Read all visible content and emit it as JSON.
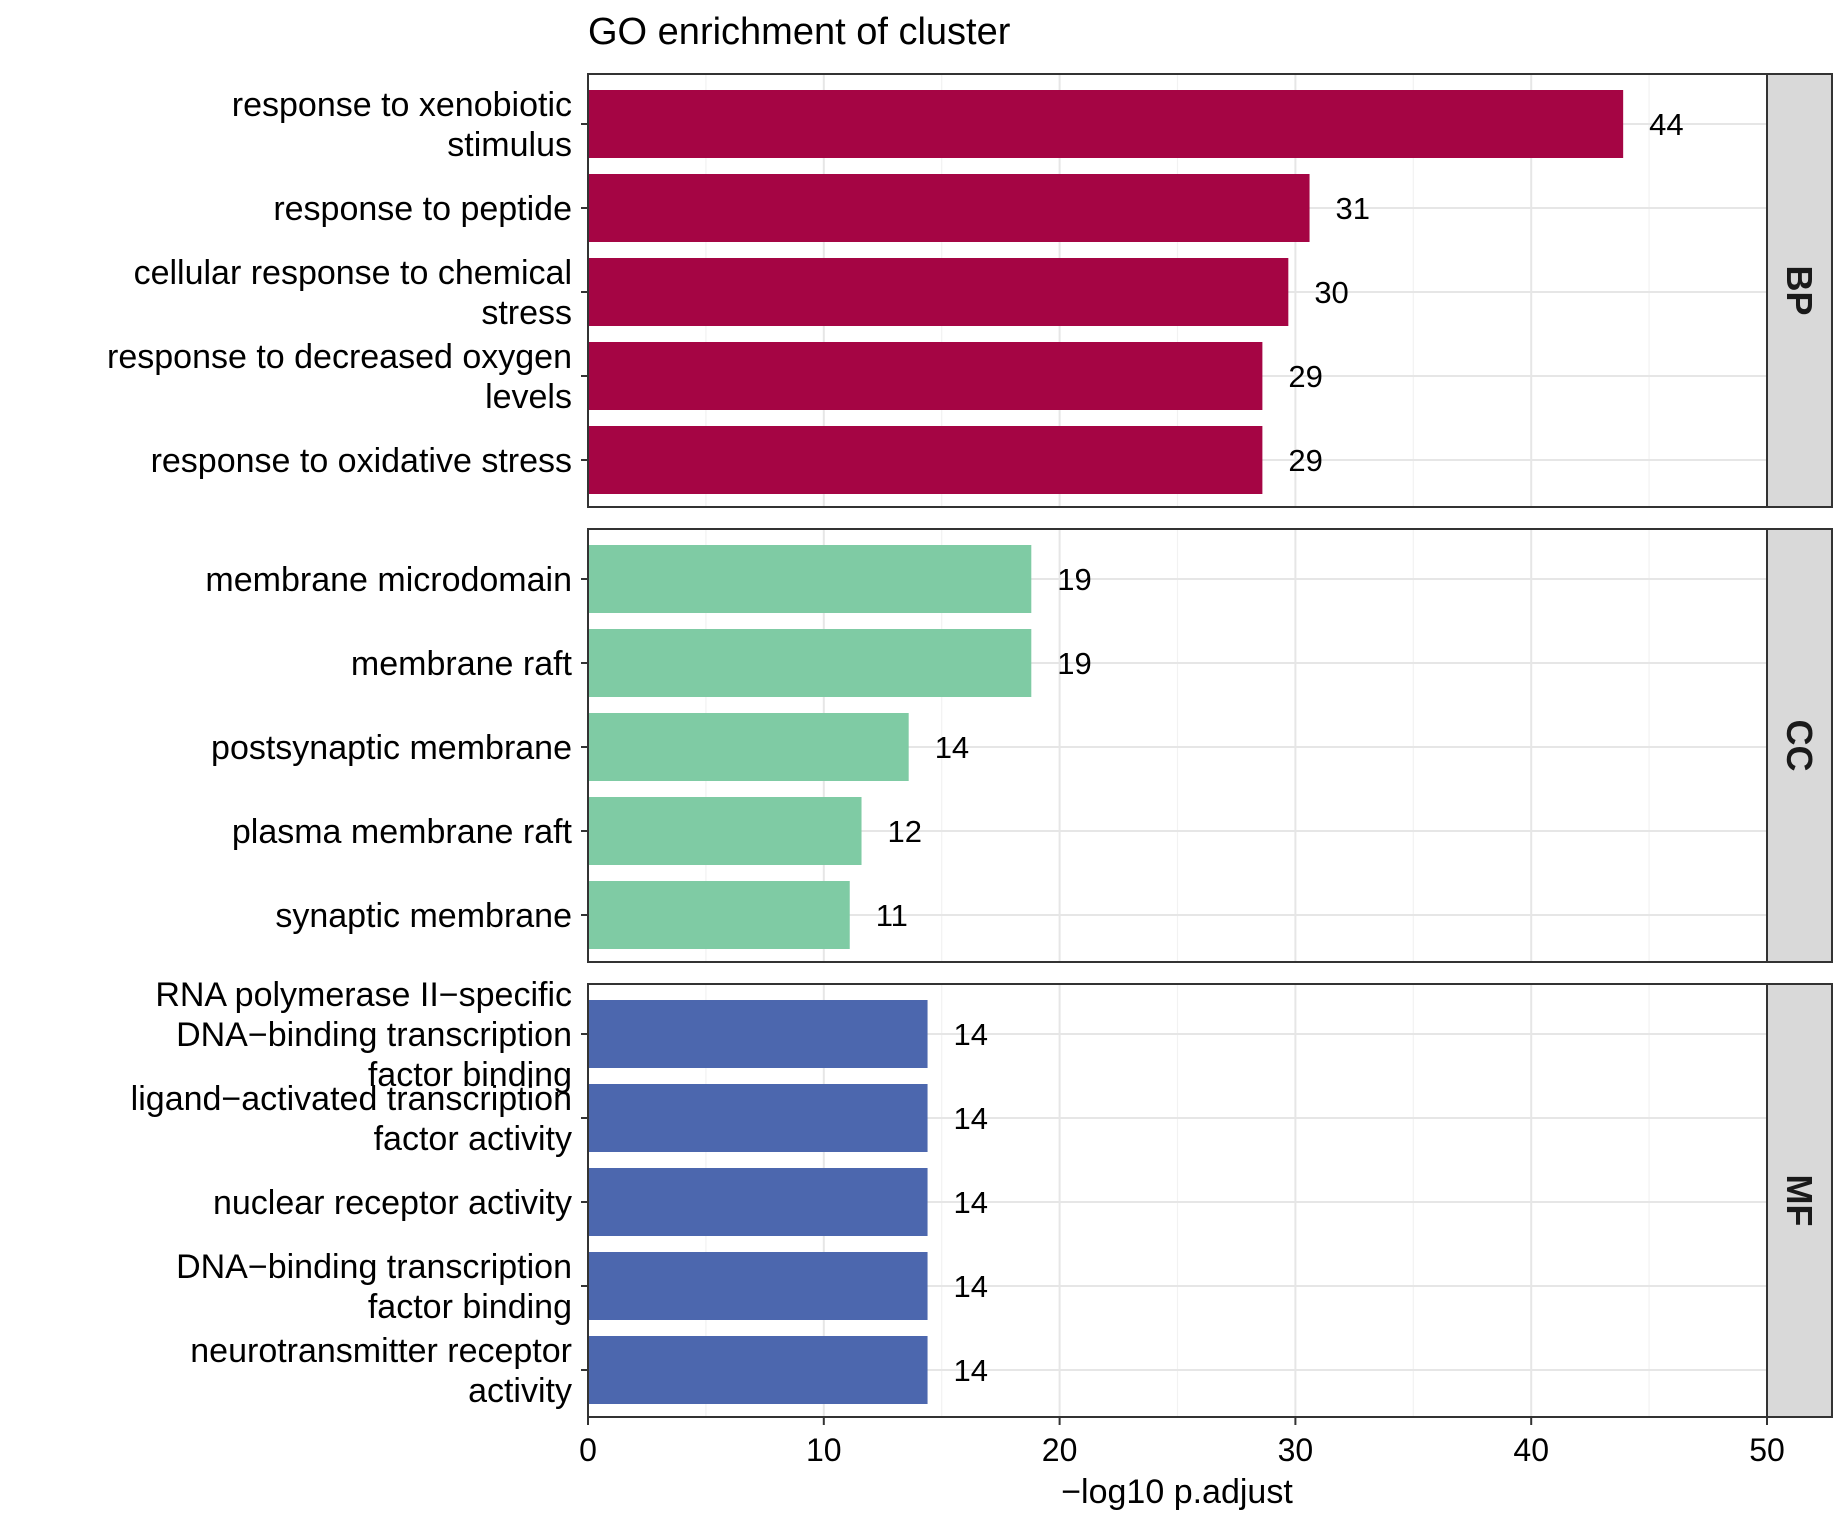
{
  "chart_data": {
    "type": "bar",
    "orientation": "horizontal",
    "title": "GO enrichment of cluster",
    "xlabel": "−log10 p.adjust",
    "xlim": [
      0,
      50
    ],
    "xticks": [
      "0",
      "10",
      "20",
      "30",
      "40",
      "50"
    ],
    "xtick_values": [
      0,
      10,
      20,
      30,
      40,
      50
    ],
    "grid": true,
    "legend": "none",
    "panels": [
      {
        "name": "BP",
        "color": "#a50544",
        "categories": [
          "response to xenobiotic stimulus",
          "response to peptide",
          "cellular response to chemical stress",
          "response to decreased oxygen levels",
          "response to oxidative stress"
        ],
        "label_lines": [
          [
            "response to xenobiotic",
            "stimulus"
          ],
          [
            "response to peptide"
          ],
          [
            "cellular response to chemical",
            "stress"
          ],
          [
            "response to decreased oxygen",
            "levels"
          ],
          [
            "response to oxidative stress"
          ]
        ],
        "values": [
          43.9,
          30.6,
          29.7,
          28.6,
          28.6
        ],
        "labels": [
          "44",
          "31",
          "30",
          "29",
          "29"
        ]
      },
      {
        "name": "CC",
        "color": "#7fcba4",
        "categories": [
          "membrane microdomain",
          "membrane raft",
          "postsynaptic membrane",
          "plasma membrane raft",
          "synaptic membrane"
        ],
        "label_lines": [
          [
            "membrane microdomain"
          ],
          [
            "membrane raft"
          ],
          [
            "postsynaptic membrane"
          ],
          [
            "plasma membrane raft"
          ],
          [
            "synaptic membrane"
          ]
        ],
        "values": [
          18.8,
          18.8,
          13.6,
          11.6,
          11.1
        ],
        "labels": [
          "19",
          "19",
          "14",
          "12",
          "11"
        ]
      },
      {
        "name": "MF",
        "color": "#4c67ae",
        "categories": [
          "RNA polymerase II−specific DNA−binding transcription factor binding",
          "ligand−activated transcription factor activity",
          "nuclear receptor activity",
          "DNA−binding transcription factor binding",
          "neurotransmitter receptor activity"
        ],
        "label_lines": [
          [
            "RNA polymerase II−specific",
            "DNA−binding transcription",
            "factor binding"
          ],
          [
            "ligand−activated transcription",
            "factor activity"
          ],
          [
            "nuclear receptor activity"
          ],
          [
            "DNA−binding transcription",
            "factor binding"
          ],
          [
            "neurotransmitter receptor",
            "activity"
          ]
        ],
        "values": [
          14.4,
          14.4,
          14.4,
          14.4,
          14.4
        ],
        "labels": [
          "14",
          "14",
          "14",
          "14",
          "14"
        ]
      }
    ]
  }
}
